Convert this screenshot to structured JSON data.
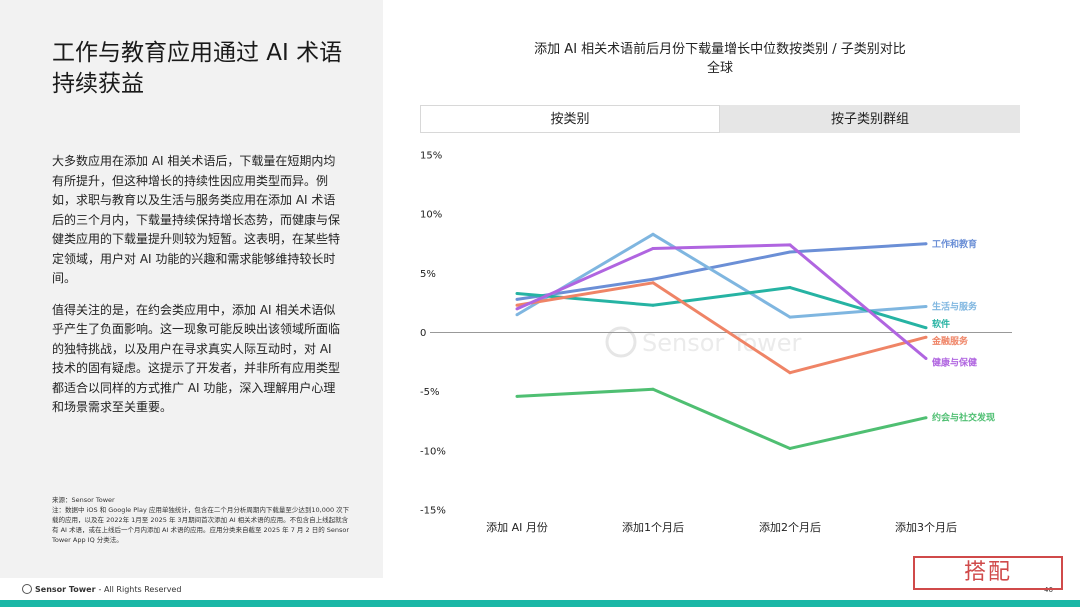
{
  "page": {
    "title": "工作与教育应用通过 AI 术语持续获益",
    "paragraphs": [
      "大多数应用在添加 AI 相关术语后，下载量在短期内均有所提升，但这种增长的持续性因应用类型而异。例如，求职与教育以及生活与服务类应用在添加 AI 术语后的三个月内，下载量持续保持增长态势，而健康与保健类应用的下载量提升则较为短暂。这表明，在某些特定领域，用户对 AI 功能的兴趣和需求能够维持较长时间。",
      "值得关注的是，在约会类应用中，添加 AI 相关术语似乎产生了负面影响。这一现象可能反映出该领域所面临的独特挑战，以及用户在寻求真实人际互动时，对 AI 技术的固有疑虑。这提示了开发者，并非所有应用类型都适合以同样的方式推广 AI 功能，深入理解用户心理和场景需求至关重要。"
    ],
    "source_label": "来源：Sensor Tower",
    "source_note": "注：数据中 iOS 和 Google Play 应用单独统计，包含在二个月分析周期内下载量至少达到10,000 次下载的应用，以及在 2022年 1月至 2025 年 3月期间首次添加 AI 相关术语的应用。不包含自上线起就含有 AI 术语，或在上线后一个月内添加 AI 术语的应用。应用分类来自截至 2025 年 7 月 2 日的 Sensor Tower App IQ 分类法。",
    "brand": "Sensor Tower",
    "rights": " - All Rights Reserved",
    "page_number": "46",
    "watermark": "Sensor Tower",
    "stamp_text": "搭配"
  },
  "tabs": [
    "按类别",
    "按子类别群组"
  ],
  "colors": {
    "work_edu": "#6b8fd6",
    "life": "#7fb6e0",
    "software": "#26b3a3",
    "finance": "#ef8466",
    "health": "#b065e0",
    "dating": "#4fbf72",
    "zero": "#999999"
  },
  "chart_data": {
    "type": "line",
    "title": "添加 AI 相关术语前后月份下载量增长中位数按类别 / 子类别对比",
    "subtitle": "全球",
    "categories": [
      "添加 AI 月份",
      "添加1个月后",
      "添加2个月后",
      "添加3个月后"
    ],
    "ylim": [
      -15,
      15
    ],
    "yticks": [
      15,
      10,
      5,
      0,
      -5,
      -10,
      -15
    ],
    "ytick_labels": [
      "15%",
      "10%",
      "5%",
      "0",
      "-5%",
      "-10%",
      "-15%"
    ],
    "series": [
      {
        "name": "工作和教育",
        "color_key": "work_edu",
        "values": [
          2.8,
          4.5,
          6.8,
          7.5
        ]
      },
      {
        "name": "生活与服务",
        "color_key": "life",
        "values": [
          1.5,
          8.3,
          1.3,
          2.2
        ]
      },
      {
        "name": "软件",
        "color_key": "software",
        "values": [
          3.3,
          2.3,
          3.8,
          0.4
        ]
      },
      {
        "name": "金融服务",
        "color_key": "finance",
        "values": [
          2.3,
          4.2,
          -3.4,
          -0.4
        ]
      },
      {
        "name": "健康与保健",
        "color_key": "health",
        "values": [
          2.0,
          7.1,
          7.4,
          -2.2
        ]
      },
      {
        "name": "约会与社交发现",
        "color_key": "dating",
        "values": [
          -5.4,
          -4.8,
          -9.8,
          -7.2
        ]
      }
    ]
  }
}
